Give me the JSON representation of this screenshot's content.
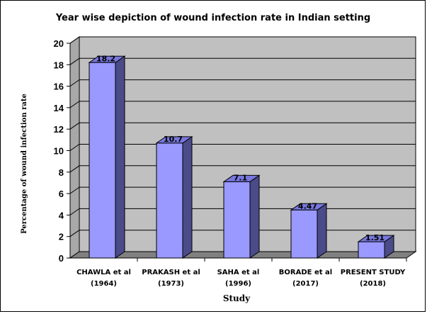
{
  "chart_data": {
    "type": "bar",
    "title": "Year wise depiction of wound infection rate in Indian setting",
    "xlabel": "Study",
    "ylabel": "Percentage of wound infection rate",
    "categories": [
      [
        "CHAWLA et al",
        "(1964)"
      ],
      [
        "PRAKASH et al",
        "(1973)"
      ],
      [
        "SAHA et al",
        "(1996)"
      ],
      [
        "BORADE et al",
        "(2017)"
      ],
      [
        "PRESENT STUDY",
        "(2018)"
      ]
    ],
    "values": [
      18.2,
      10.7,
      7.1,
      4.47,
      1.51
    ],
    "value_labels": [
      "18.2",
      "10.7",
      "7.1",
      "4.47",
      "1.51"
    ],
    "yticks": [
      "0",
      "2",
      "4",
      "6",
      "8",
      "10",
      "12",
      "14",
      "16",
      "18",
      "20"
    ],
    "ylim": [
      0,
      20
    ],
    "grid": true,
    "style": "3d",
    "colors": {
      "bar_front": "#9999ff",
      "bar_side": "#4b4b8a",
      "bar_top": "#7777dd",
      "wall": "#c0c0c0",
      "floor": "#808080"
    }
  }
}
